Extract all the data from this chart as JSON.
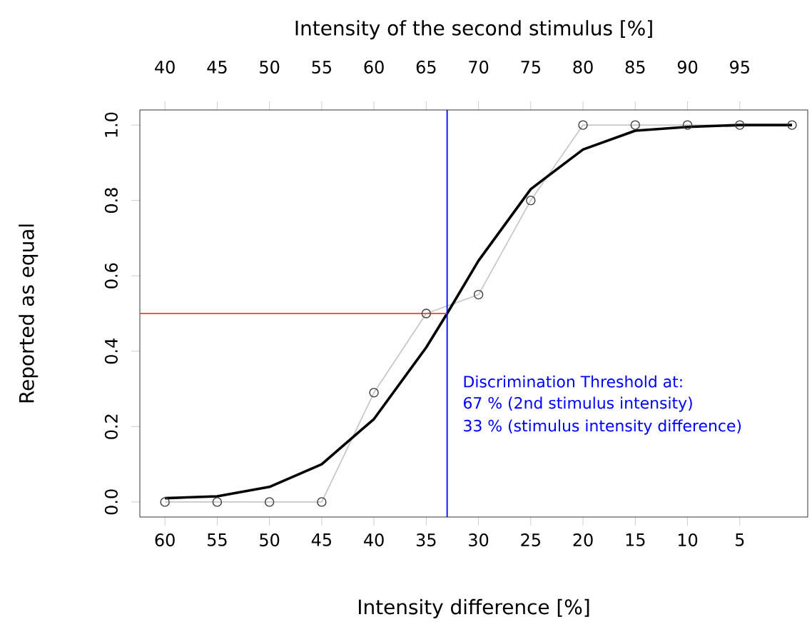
{
  "chart_data": {
    "type": "line",
    "xlabel": "Intensity difference [%]",
    "x2label": "Intensity of the second stimulus [%]",
    "ylabel": "Reported as equal",
    "xlim": [
      62.4,
      -1.5
    ],
    "xticks": [
      60,
      55,
      50,
      45,
      40,
      35,
      30,
      25,
      20,
      15,
      10,
      5
    ],
    "x2lim": [
      37.6,
      101.5
    ],
    "x2ticks": [
      40,
      45,
      50,
      55,
      60,
      65,
      70,
      75,
      80,
      85,
      90,
      95
    ],
    "ylim": [
      -0.04,
      1.04
    ],
    "yticks": [
      {
        "value": 0,
        "label": "0.0"
      },
      {
        "value": 0.2,
        "label": "0.2"
      },
      {
        "value": 0.4,
        "label": "0.4"
      },
      {
        "value": 0.6,
        "label": "0.6"
      },
      {
        "value": 0.8,
        "label": "0.8"
      },
      {
        "value": 1,
        "label": "1.0"
      }
    ],
    "grid": false,
    "series": [
      {
        "color": "#c8c8c8",
        "marker": "circle",
        "x": [
          60,
          55,
          50,
          45,
          40,
          35,
          30,
          25,
          20,
          15,
          10,
          5,
          0
        ],
        "values": [
          0,
          0,
          0,
          0,
          0.29,
          0.5,
          0.55,
          0.8,
          1,
          1,
          1,
          1,
          1
        ]
      },
      {
        "color": "#000000",
        "marker": "none",
        "x": [
          60,
          55,
          50,
          45,
          40,
          35,
          33,
          30,
          25,
          20,
          15,
          10,
          5,
          0
        ],
        "values": [
          0.01,
          0.015,
          0.04,
          0.1,
          0.22,
          0.41,
          0.5,
          0.64,
          0.83,
          0.935,
          0.985,
          0.995,
          1,
          1
        ]
      },
      {
        "color": "#f05a3c",
        "marker": "none",
        "x": [
          62.4,
          33
        ],
        "values": [
          0.5,
          0.5
        ]
      }
    ],
    "ref_lines": [
      {
        "axis": "x",
        "value": 33,
        "color": "#0000ff"
      }
    ],
    "annotations": [
      "Discrimination Threshold at:",
      "67 %  (2nd stimulus intensity)",
      "33 %  (stimulus intensity difference)"
    ]
  }
}
